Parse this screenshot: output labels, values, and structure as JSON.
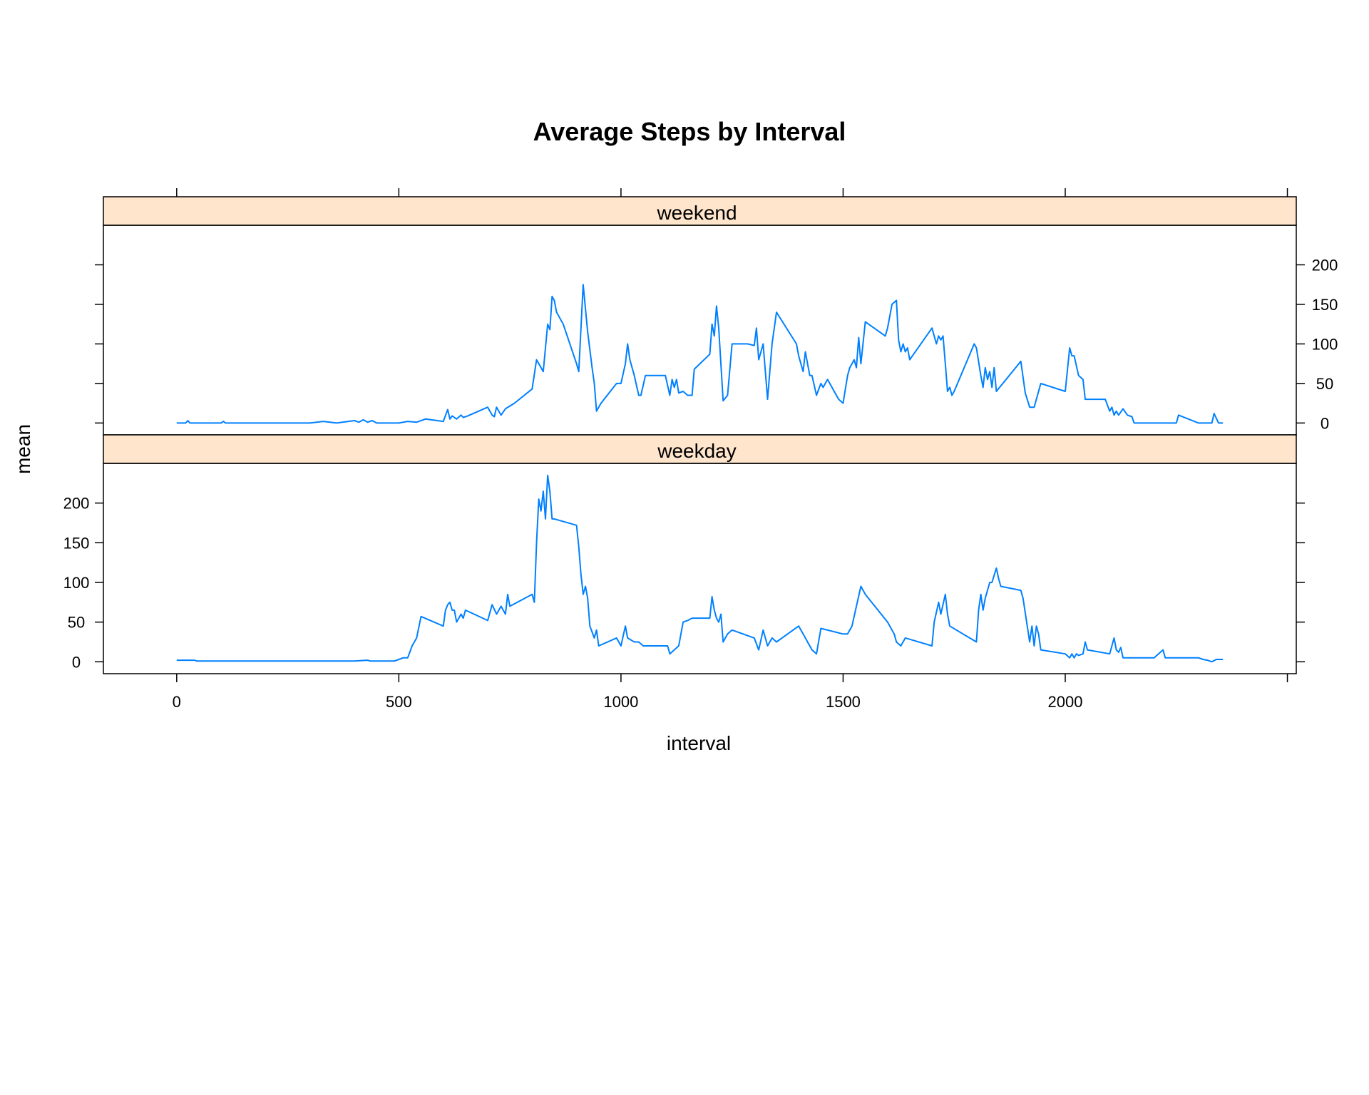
{
  "chart_data": {
    "type": "line",
    "title": "Average Steps by Interval",
    "xlabel": "interval",
    "ylabel": "mean",
    "xlim": [
      -165,
      2520
    ],
    "ylim": [
      -15,
      250
    ],
    "x_ticks": [
      0,
      500,
      1000,
      1500,
      2000
    ],
    "y_ticks": [
      0,
      50,
      100,
      150,
      200
    ],
    "line_color": "#0080ff",
    "strip_color": "#ffe5cc",
    "panels": [
      {
        "name": "weekend",
        "points": [
          [
            0,
            0
          ],
          [
            20,
            0
          ],
          [
            25,
            3
          ],
          [
            30,
            0
          ],
          [
            100,
            0
          ],
          [
            105,
            2
          ],
          [
            110,
            0
          ],
          [
            300,
            0
          ],
          [
            330,
            2
          ],
          [
            360,
            0
          ],
          [
            400,
            3
          ],
          [
            410,
            1
          ],
          [
            420,
            4
          ],
          [
            430,
            1
          ],
          [
            440,
            3
          ],
          [
            450,
            0
          ],
          [
            500,
            0
          ],
          [
            520,
            2
          ],
          [
            540,
            1
          ],
          [
            560,
            5
          ],
          [
            600,
            2
          ],
          [
            610,
            17
          ],
          [
            615,
            5
          ],
          [
            620,
            9
          ],
          [
            630,
            5
          ],
          [
            640,
            10
          ],
          [
            645,
            7
          ],
          [
            655,
            9
          ],
          [
            700,
            20
          ],
          [
            710,
            10
          ],
          [
            715,
            8
          ],
          [
            720,
            20
          ],
          [
            730,
            10
          ],
          [
            740,
            18
          ],
          [
            760,
            25
          ],
          [
            800,
            43
          ],
          [
            810,
            80
          ],
          [
            825,
            65
          ],
          [
            835,
            125
          ],
          [
            840,
            118
          ],
          [
            845,
            160
          ],
          [
            850,
            155
          ],
          [
            855,
            140
          ],
          [
            870,
            125
          ],
          [
            900,
            75
          ],
          [
            905,
            65
          ],
          [
            915,
            175
          ],
          [
            925,
            115
          ],
          [
            935,
            70
          ],
          [
            940,
            50
          ],
          [
            945,
            15
          ],
          [
            950,
            20
          ],
          [
            955,
            25
          ],
          [
            990,
            50
          ],
          [
            1000,
            50
          ],
          [
            1010,
            75
          ],
          [
            1015,
            100
          ],
          [
            1020,
            80
          ],
          [
            1030,
            60
          ],
          [
            1040,
            35
          ],
          [
            1045,
            35
          ],
          [
            1055,
            60
          ],
          [
            1100,
            60
          ],
          [
            1110,
            35
          ],
          [
            1115,
            55
          ],
          [
            1120,
            45
          ],
          [
            1125,
            55
          ],
          [
            1130,
            38
          ],
          [
            1140,
            40
          ],
          [
            1150,
            35
          ],
          [
            1160,
            35
          ],
          [
            1165,
            68
          ],
          [
            1200,
            87
          ],
          [
            1205,
            125
          ],
          [
            1210,
            110
          ],
          [
            1215,
            148
          ],
          [
            1220,
            120
          ],
          [
            1230,
            28
          ],
          [
            1240,
            35
          ],
          [
            1250,
            100
          ],
          [
            1285,
            100
          ],
          [
            1300,
            98
          ],
          [
            1305,
            120
          ],
          [
            1310,
            80
          ],
          [
            1320,
            100
          ],
          [
            1330,
            30
          ],
          [
            1340,
            100
          ],
          [
            1350,
            140
          ],
          [
            1395,
            100
          ],
          [
            1400,
            85
          ],
          [
            1410,
            65
          ],
          [
            1415,
            90
          ],
          [
            1425,
            60
          ],
          [
            1430,
            60
          ],
          [
            1440,
            35
          ],
          [
            1450,
            50
          ],
          [
            1455,
            45
          ],
          [
            1465,
            55
          ],
          [
            1490,
            30
          ],
          [
            1500,
            25
          ],
          [
            1510,
            60
          ],
          [
            1515,
            70
          ],
          [
            1525,
            80
          ],
          [
            1530,
            70
          ],
          [
            1535,
            108
          ],
          [
            1540,
            75
          ],
          [
            1550,
            128
          ],
          [
            1595,
            110
          ],
          [
            1600,
            120
          ],
          [
            1610,
            150
          ],
          [
            1620,
            155
          ],
          [
            1625,
            105
          ],
          [
            1630,
            90
          ],
          [
            1635,
            100
          ],
          [
            1640,
            90
          ],
          [
            1645,
            95
          ],
          [
            1650,
            80
          ],
          [
            1700,
            120
          ],
          [
            1710,
            100
          ],
          [
            1715,
            110
          ],
          [
            1720,
            105
          ],
          [
            1725,
            110
          ],
          [
            1730,
            75
          ],
          [
            1735,
            40
          ],
          [
            1740,
            45
          ],
          [
            1745,
            35
          ],
          [
            1750,
            40
          ],
          [
            1795,
            100
          ],
          [
            1800,
            95
          ],
          [
            1810,
            60
          ],
          [
            1815,
            45
          ],
          [
            1820,
            70
          ],
          [
            1825,
            55
          ],
          [
            1830,
            65
          ],
          [
            1835,
            45
          ],
          [
            1840,
            70
          ],
          [
            1845,
            40
          ],
          [
            1900,
            78
          ],
          [
            1910,
            38
          ],
          [
            1920,
            20
          ],
          [
            1930,
            20
          ],
          [
            1945,
            50
          ],
          [
            2000,
            40
          ],
          [
            2010,
            95
          ],
          [
            2015,
            85
          ],
          [
            2020,
            85
          ],
          [
            2030,
            60
          ],
          [
            2040,
            55
          ],
          [
            2045,
            30
          ],
          [
            2090,
            30
          ],
          [
            2100,
            15
          ],
          [
            2105,
            20
          ],
          [
            2110,
            10
          ],
          [
            2115,
            15
          ],
          [
            2120,
            10
          ],
          [
            2130,
            18
          ],
          [
            2140,
            10
          ],
          [
            2150,
            8
          ],
          [
            2155,
            0
          ],
          [
            2250,
            0
          ],
          [
            2255,
            10
          ],
          [
            2300,
            0
          ],
          [
            2330,
            0
          ],
          [
            2335,
            12
          ],
          [
            2345,
            0
          ],
          [
            2355,
            0
          ]
        ]
      },
      {
        "name": "weekday",
        "points": [
          [
            0,
            2
          ],
          [
            40,
            2
          ],
          [
            45,
            1
          ],
          [
            100,
            1
          ],
          [
            130,
            1
          ],
          [
            200,
            1
          ],
          [
            250,
            1
          ],
          [
            300,
            1
          ],
          [
            350,
            1
          ],
          [
            400,
            1
          ],
          [
            430,
            2
          ],
          [
            435,
            1
          ],
          [
            490,
            1
          ],
          [
            500,
            3
          ],
          [
            510,
            5
          ],
          [
            520,
            5
          ],
          [
            530,
            20
          ],
          [
            540,
            30
          ],
          [
            550,
            57
          ],
          [
            600,
            45
          ],
          [
            605,
            65
          ],
          [
            610,
            72
          ],
          [
            615,
            75
          ],
          [
            620,
            65
          ],
          [
            625,
            65
          ],
          [
            630,
            50
          ],
          [
            640,
            60
          ],
          [
            645,
            55
          ],
          [
            650,
            65
          ],
          [
            700,
            52
          ],
          [
            710,
            72
          ],
          [
            720,
            60
          ],
          [
            730,
            70
          ],
          [
            740,
            60
          ],
          [
            745,
            85
          ],
          [
            750,
            70
          ],
          [
            800,
            85
          ],
          [
            805,
            75
          ],
          [
            810,
            150
          ],
          [
            815,
            205
          ],
          [
            820,
            190
          ],
          [
            825,
            215
          ],
          [
            830,
            180
          ],
          [
            835,
            235
          ],
          [
            840,
            215
          ],
          [
            845,
            180
          ],
          [
            850,
            180
          ],
          [
            900,
            172
          ],
          [
            905,
            145
          ],
          [
            910,
            110
          ],
          [
            915,
            85
          ],
          [
            920,
            95
          ],
          [
            925,
            80
          ],
          [
            930,
            45
          ],
          [
            940,
            30
          ],
          [
            945,
            40
          ],
          [
            950,
            20
          ],
          [
            990,
            30
          ],
          [
            1000,
            20
          ],
          [
            1010,
            45
          ],
          [
            1015,
            30
          ],
          [
            1030,
            25
          ],
          [
            1040,
            25
          ],
          [
            1050,
            20
          ],
          [
            1100,
            20
          ],
          [
            1105,
            20
          ],
          [
            1110,
            10
          ],
          [
            1120,
            15
          ],
          [
            1130,
            20
          ],
          [
            1140,
            50
          ],
          [
            1150,
            52
          ],
          [
            1160,
            55
          ],
          [
            1200,
            55
          ],
          [
            1205,
            82
          ],
          [
            1210,
            65
          ],
          [
            1215,
            55
          ],
          [
            1220,
            50
          ],
          [
            1225,
            60
          ],
          [
            1230,
            25
          ],
          [
            1240,
            35
          ],
          [
            1250,
            40
          ],
          [
            1300,
            30
          ],
          [
            1310,
            15
          ],
          [
            1320,
            40
          ],
          [
            1325,
            30
          ],
          [
            1330,
            20
          ],
          [
            1340,
            30
          ],
          [
            1350,
            25
          ],
          [
            1400,
            45
          ],
          [
            1410,
            35
          ],
          [
            1420,
            25
          ],
          [
            1430,
            15
          ],
          [
            1440,
            10
          ],
          [
            1450,
            42
          ],
          [
            1500,
            35
          ],
          [
            1510,
            35
          ],
          [
            1520,
            45
          ],
          [
            1530,
            70
          ],
          [
            1540,
            95
          ],
          [
            1550,
            85
          ],
          [
            1600,
            50
          ],
          [
            1610,
            40
          ],
          [
            1615,
            35
          ],
          [
            1620,
            25
          ],
          [
            1630,
            20
          ],
          [
            1640,
            30
          ],
          [
            1700,
            20
          ],
          [
            1705,
            50
          ],
          [
            1715,
            75
          ],
          [
            1720,
            60
          ],
          [
            1730,
            85
          ],
          [
            1735,
            60
          ],
          [
            1740,
            45
          ],
          [
            1800,
            25
          ],
          [
            1805,
            65
          ],
          [
            1810,
            85
          ],
          [
            1815,
            65
          ],
          [
            1820,
            80
          ],
          [
            1830,
            100
          ],
          [
            1835,
            100
          ],
          [
            1845,
            118
          ],
          [
            1850,
            105
          ],
          [
            1855,
            95
          ],
          [
            1900,
            90
          ],
          [
            1905,
            80
          ],
          [
            1920,
            25
          ],
          [
            1925,
            45
          ],
          [
            1930,
            20
          ],
          [
            1935,
            45
          ],
          [
            1940,
            35
          ],
          [
            1945,
            15
          ],
          [
            2000,
            10
          ],
          [
            2010,
            5
          ],
          [
            2015,
            10
          ],
          [
            2020,
            5
          ],
          [
            2025,
            10
          ],
          [
            2030,
            8
          ],
          [
            2040,
            10
          ],
          [
            2045,
            25
          ],
          [
            2050,
            15
          ],
          [
            2100,
            10
          ],
          [
            2105,
            20
          ],
          [
            2110,
            30
          ],
          [
            2115,
            15
          ],
          [
            2120,
            12
          ],
          [
            2125,
            18
          ],
          [
            2130,
            5
          ],
          [
            2140,
            5
          ],
          [
            2150,
            5
          ],
          [
            2200,
            5
          ],
          [
            2210,
            10
          ],
          [
            2220,
            15
          ],
          [
            2225,
            5
          ],
          [
            2300,
            5
          ],
          [
            2310,
            3
          ],
          [
            2320,
            2
          ],
          [
            2330,
            0
          ],
          [
            2340,
            3
          ],
          [
            2355,
            3
          ]
        ]
      }
    ]
  }
}
